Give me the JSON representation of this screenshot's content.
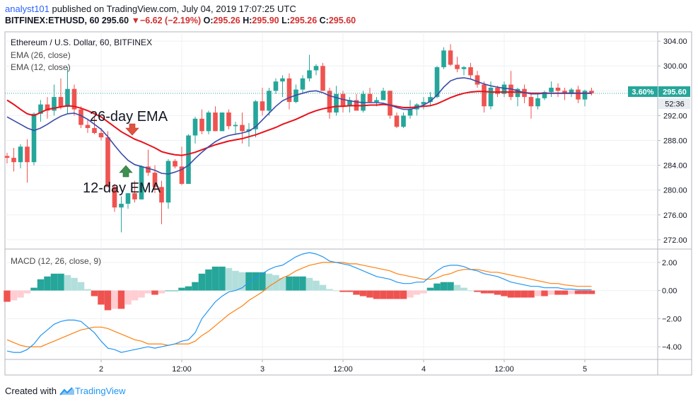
{
  "header": {
    "user": "analyst101",
    "published": "published on TradingView.com, July 04, 2019 17:07:25 UTC",
    "symbol": "BITFINEX:ETHUSD, 60",
    "last": "295.60",
    "change": "−6.62 (−2.19%)",
    "o_label": "O:",
    "o": "295.26",
    "h_label": "H:",
    "h": "295.90",
    "l_label": "L:",
    "l": "295.26",
    "c_label": "C:",
    "c": "295.60"
  },
  "legend": {
    "title": "Ethereum / U.S. Dollar, 60, BITFINEX",
    "ema26": "EMA (26, close)",
    "ema12": "EMA (12, close)",
    "macd": "MACD (12, 26, close, 9)"
  },
  "annotations": {
    "ema26": "26-day EMA",
    "ema12": "12-day EMA"
  },
  "price_tags": {
    "percent": "3.60%",
    "price": "295.60",
    "countdown": "52:36"
  },
  "footer": {
    "created_with": "Created with",
    "brand": "TradingView"
  },
  "colors": {
    "up": "#26a69a",
    "down": "#ef5350",
    "ema26": "#e8111b",
    "ema12": "#3b4ba8",
    "macd_line": "#2196f3",
    "signal_line": "#ff7f0e"
  },
  "chart_data": [
    {
      "type": "candlestick",
      "title": "Ethereum / U.S. Dollar, 60, BITFINEX",
      "x_ticks": [
        "2",
        "12:00",
        "3",
        "12:00",
        "4",
        "12:00",
        "5"
      ],
      "x_tick_bars": [
        14,
        26,
        38,
        50,
        62,
        74,
        86
      ],
      "y_ticks": [
        272,
        276,
        280,
        284,
        288,
        292,
        296,
        300,
        304
      ],
      "ylim": [
        270.5,
        305.5
      ],
      "ohlc": [
        [
          285.5,
          286.0,
          284.3,
          285.2
        ],
        [
          285.2,
          286.8,
          283.0,
          284.5
        ],
        [
          284.5,
          287.4,
          283.5,
          287.0
        ],
        [
          287.0,
          288.2,
          281.2,
          284.5
        ],
        [
          284.5,
          292.5,
          284.0,
          292.3
        ],
        [
          292.3,
          294.5,
          291.0,
          293.8
        ],
        [
          293.8,
          295.0,
          291.5,
          292.8
        ],
        [
          292.8,
          297.0,
          292.0,
          295.0
        ],
        [
          295.0,
          298.0,
          293.0,
          293.4
        ],
        [
          293.4,
          299.8,
          292.3,
          296.3
        ],
        [
          296.3,
          297.0,
          292.0,
          293.0
        ],
        [
          293.0,
          293.5,
          290.0,
          290.5
        ],
        [
          290.5,
          291.5,
          289.2,
          290.0
        ],
        [
          290.0,
          292.0,
          289.0,
          289.2
        ],
        [
          289.2,
          290.0,
          288.0,
          288.5
        ],
        [
          288.5,
          289.5,
          280.5,
          280.5
        ],
        [
          280.5,
          281.0,
          276.5,
          277.2
        ],
        [
          277.2,
          279.0,
          273.2,
          277.8
        ],
        [
          277.8,
          279.5,
          277.0,
          279.5
        ],
        [
          279.5,
          281.5,
          278.0,
          278.5
        ],
        [
          278.5,
          284.0,
          278.5,
          283.8
        ],
        [
          283.8,
          286.5,
          282.3,
          282.8
        ],
        [
          282.8,
          284.0,
          279.5,
          280.5
        ],
        [
          280.5,
          281.5,
          274.5,
          278.0
        ],
        [
          278.0,
          285.0,
          277.0,
          284.7
        ],
        [
          284.7,
          285.0,
          283.5,
          283.8
        ],
        [
          283.8,
          287.0,
          280.8,
          281.0
        ],
        [
          281.0,
          289.0,
          281.0,
          288.8
        ],
        [
          288.8,
          291.8,
          287.5,
          291.5
        ],
        [
          291.5,
          293.0,
          289.0,
          289.5
        ],
        [
          289.5,
          292.8,
          289.0,
          292.5
        ],
        [
          292.5,
          293.5,
          289.5,
          289.5
        ],
        [
          289.5,
          292.5,
          289.5,
          292.5
        ],
        [
          292.5,
          293.0,
          289.8,
          290.3
        ],
        [
          290.3,
          291.0,
          289.0,
          290.5
        ],
        [
          290.5,
          292.5,
          287.5,
          289.5
        ],
        [
          289.5,
          290.8,
          287.0,
          289.8
        ],
        [
          289.8,
          294.5,
          288.5,
          294.3
        ],
        [
          294.3,
          296.5,
          292.0,
          292.8
        ],
        [
          292.8,
          296.5,
          292.0,
          296.0
        ],
        [
          296.0,
          298.0,
          295.5,
          297.5
        ],
        [
          297.5,
          298.5,
          295.0,
          298.0
        ],
        [
          298.0,
          298.8,
          293.0,
          294.2
        ],
        [
          294.2,
          297.0,
          294.0,
          296.2
        ],
        [
          296.2,
          298.5,
          295.5,
          298.0
        ],
        [
          298.0,
          301.8,
          297.5,
          299.3
        ],
        [
          299.3,
          300.3,
          298.5,
          300.0
        ],
        [
          300.0,
          300.5,
          296.0,
          296.0
        ],
        [
          296.0,
          296.5,
          291.5,
          292.5
        ],
        [
          292.5,
          296.8,
          292.0,
          295.5
        ],
        [
          295.5,
          296.0,
          292.5,
          293.5
        ],
        [
          293.5,
          295.0,
          292.5,
          294.5
        ],
        [
          294.5,
          295.5,
          292.8,
          292.8
        ],
        [
          292.8,
          296.0,
          292.5,
          295.5
        ],
        [
          295.5,
          296.5,
          294.0,
          294.2
        ],
        [
          294.2,
          295.0,
          293.5,
          294.5
        ],
        [
          294.5,
          296.5,
          294.5,
          296.0
        ],
        [
          296.0,
          296.0,
          291.5,
          292.0
        ],
        [
          292.0,
          292.5,
          290.0,
          290.2
        ],
        [
          290.2,
          292.5,
          290.0,
          292.0
        ],
        [
          292.0,
          294.5,
          291.5,
          293.0
        ],
        [
          293.0,
          294.0,
          292.0,
          293.8
        ],
        [
          293.8,
          295.0,
          293.0,
          294.2
        ],
        [
          294.2,
          295.8,
          293.5,
          295.0
        ],
        [
          295.0,
          300.0,
          294.8,
          299.8
        ],
        [
          299.8,
          303.0,
          299.5,
          302.5
        ],
        [
          302.5,
          303.5,
          300.0,
          300.2
        ],
        [
          300.2,
          301.5,
          299.0,
          299.5
        ],
        [
          299.5,
          300.0,
          298.5,
          299.8
        ],
        [
          299.8,
          300.5,
          298.0,
          298.5
        ],
        [
          298.5,
          299.2,
          296.5,
          297.0
        ],
        [
          297.0,
          297.5,
          292.5,
          293.5
        ],
        [
          293.5,
          297.5,
          293.0,
          296.5
        ],
        [
          296.5,
          296.8,
          295.0,
          295.5
        ],
        [
          295.5,
          297.5,
          295.0,
          297.0
        ],
        [
          297.0,
          299.2,
          294.5,
          295.0
        ],
        [
          295.0,
          296.5,
          293.5,
          296.3
        ],
        [
          296.3,
          297.0,
          294.0,
          295.0
        ],
        [
          295.0,
          295.5,
          291.5,
          293.5
        ],
        [
          293.5,
          295.5,
          293.0,
          294.8
        ],
        [
          294.8,
          296.0,
          294.5,
          295.8
        ],
        [
          295.8,
          297.5,
          295.0,
          296.5
        ],
        [
          296.5,
          297.2,
          295.0,
          296.0
        ],
        [
          296.0,
          296.5,
          294.5,
          295.5
        ],
        [
          295.5,
          296.5,
          295.0,
          296.2
        ],
        [
          296.2,
          296.8,
          294.0,
          294.6
        ],
        [
          294.6,
          296.2,
          293.5,
          296.0
        ],
        [
          296.0,
          296.5,
          295.26,
          295.6
        ]
      ],
      "ema26": [
        294.5,
        293.8,
        293.0,
        292.3,
        292.0,
        292.5,
        293.0,
        293.2,
        293.4,
        293.6,
        293.5,
        293.2,
        292.8,
        292.3,
        291.8,
        291.0,
        290.2,
        289.4,
        288.8,
        288.2,
        287.8,
        287.3,
        286.8,
        286.2,
        285.9,
        285.7,
        285.6,
        285.8,
        286.1,
        286.5,
        286.9,
        287.3,
        287.6,
        287.9,
        288.1,
        288.3,
        288.6,
        288.9,
        289.3,
        289.7,
        290.1,
        290.6,
        291.0,
        291.4,
        291.9,
        292.4,
        292.8,
        293.1,
        293.3,
        293.5,
        293.5,
        293.6,
        293.6,
        293.6,
        293.7,
        293.7,
        293.8,
        293.7,
        293.5,
        293.3,
        293.3,
        293.4,
        293.5,
        293.6,
        293.9,
        294.4,
        294.9,
        295.3,
        295.6,
        295.8,
        295.9,
        295.9,
        295.8,
        295.8,
        295.8,
        295.8,
        295.8,
        295.7,
        295.6,
        295.6,
        295.6,
        295.6,
        295.6,
        295.6,
        295.6,
        295.6,
        295.6,
        295.6
      ],
      "ema12": [
        291.8,
        291.2,
        290.6,
        290.0,
        289.6,
        290.0,
        290.6,
        291.3,
        291.9,
        292.3,
        292.4,
        292.0,
        291.4,
        290.6,
        289.8,
        288.6,
        287.2,
        285.9,
        284.8,
        284.1,
        283.8,
        283.5,
        283.2,
        282.7,
        282.6,
        282.9,
        283.3,
        284.0,
        285.1,
        286.1,
        287.0,
        287.8,
        288.4,
        288.8,
        289.0,
        289.2,
        289.5,
        290.2,
        291.3,
        292.4,
        293.5,
        294.4,
        294.9,
        295.3,
        295.6,
        295.9,
        296.0,
        295.7,
        295.2,
        294.9,
        294.6,
        294.4,
        294.2,
        294.1,
        294.1,
        294.1,
        294.0,
        293.7,
        293.3,
        293.0,
        293.0,
        293.3,
        293.7,
        294.3,
        295.3,
        296.6,
        297.6,
        298.0,
        298.1,
        297.9,
        297.5,
        297.1,
        296.8,
        296.6,
        296.4,
        296.3,
        296.0,
        295.7,
        295.5,
        295.5,
        295.6,
        295.6,
        295.6,
        295.6,
        295.6,
        295.6,
        295.6,
        295.6
      ],
      "annotations": [
        "26-day EMA",
        "12-day EMA"
      ]
    },
    {
      "type": "line",
      "title": "MACD (12, 26, close, 9)",
      "y_ticks": [
        -4,
        -2,
        0,
        2
      ],
      "y_tick_labels": [
        "−4.00",
        "−2.00",
        "0.00",
        "2.00"
      ],
      "ylim": [
        -4.9,
        2.9
      ],
      "macd": [
        -4.3,
        -4.4,
        -4.4,
        -4.2,
        -3.8,
        -3.2,
        -2.8,
        -2.4,
        -2.2,
        -2.1,
        -2.1,
        -2.2,
        -2.6,
        -3.0,
        -3.6,
        -4.1,
        -4.2,
        -4.4,
        -4.3,
        -4.2,
        -4.1,
        -4.0,
        -4.1,
        -4.0,
        -3.9,
        -3.8,
        -3.6,
        -3.5,
        -3.0,
        -2.0,
        -1.4,
        -0.8,
        -0.4,
        -0.1,
        0.0,
        0.2,
        0.6,
        0.9,
        1.2,
        1.5,
        1.7,
        1.8,
        2.1,
        2.4,
        2.6,
        2.7,
        2.6,
        2.4,
        2.1,
        2.0,
        1.9,
        1.8,
        1.6,
        1.4,
        1.2,
        1.0,
        0.9,
        0.8,
        0.6,
        0.5,
        0.5,
        0.6,
        0.6,
        1.0,
        1.4,
        1.7,
        1.8,
        1.8,
        1.7,
        1.5,
        1.4,
        1.2,
        1.1,
        1.0,
        0.8,
        0.6,
        0.5,
        0.4,
        0.3,
        0.3,
        0.2,
        0.2,
        0.2,
        0.1,
        0.1,
        0.05,
        0.05,
        0.05
      ],
      "signal": [
        -3.5,
        -3.7,
        -3.9,
        -4.0,
        -4.0,
        -4.0,
        -3.8,
        -3.6,
        -3.4,
        -3.2,
        -3.0,
        -2.8,
        -2.7,
        -2.6,
        -2.6,
        -2.7,
        -2.9,
        -3.1,
        -3.3,
        -3.5,
        -3.6,
        -3.8,
        -3.8,
        -3.8,
        -3.9,
        -3.8,
        -3.8,
        -3.8,
        -3.6,
        -3.2,
        -2.9,
        -2.5,
        -2.1,
        -1.7,
        -1.4,
        -1.1,
        -0.7,
        -0.4,
        -0.1,
        0.3,
        0.6,
        0.9,
        1.1,
        1.4,
        1.6,
        1.8,
        1.9,
        2.0,
        2.0,
        2.0,
        2.0,
        1.9,
        1.9,
        1.8,
        1.7,
        1.6,
        1.5,
        1.4,
        1.2,
        1.1,
        1.0,
        0.9,
        0.8,
        0.8,
        0.9,
        1.1,
        1.2,
        1.4,
        1.5,
        1.5,
        1.5,
        1.4,
        1.3,
        1.3,
        1.2,
        1.1,
        1.0,
        0.9,
        0.8,
        0.7,
        0.6,
        0.5,
        0.5,
        0.4,
        0.35,
        0.3,
        0.3,
        0.3
      ],
      "hist": [
        -0.8,
        -0.7,
        -0.5,
        -0.2,
        0.2,
        0.8,
        1.0,
        1.2,
        1.2,
        1.1,
        0.9,
        0.6,
        0.1,
        -0.4,
        -1.0,
        -1.4,
        -1.3,
        -1.3,
        -1.0,
        -0.7,
        -0.5,
        -0.2,
        -0.3,
        -0.2,
        0.0,
        0.0,
        0.2,
        0.3,
        0.6,
        1.2,
        1.5,
        1.7,
        1.7,
        1.6,
        1.4,
        1.3,
        1.3,
        1.3,
        1.3,
        1.2,
        1.1,
        0.9,
        1.0,
        1.0,
        1.0,
        0.9,
        0.7,
        0.4,
        0.1,
        0.0,
        -0.1,
        -0.1,
        -0.3,
        -0.4,
        -0.5,
        -0.6,
        -0.6,
        -0.6,
        -0.6,
        -0.6,
        -0.5,
        -0.3,
        -0.2,
        0.2,
        0.5,
        0.6,
        0.6,
        0.4,
        0.2,
        0.0,
        -0.1,
        -0.2,
        -0.2,
        -0.3,
        -0.4,
        -0.5,
        -0.5,
        -0.5,
        -0.5,
        -0.4,
        -0.4,
        -0.3,
        -0.3,
        -0.3,
        -0.25,
        -0.25,
        -0.25,
        -0.25
      ]
    }
  ]
}
